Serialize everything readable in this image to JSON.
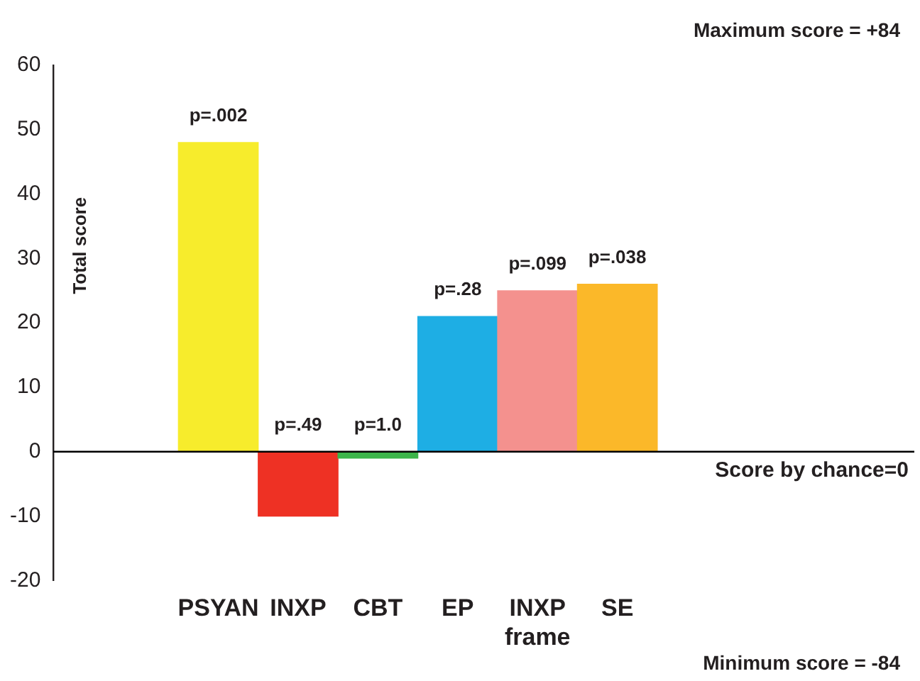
{
  "chart_data": {
    "type": "bar",
    "ylabel": "Total score",
    "categories": [
      "PSYAN",
      "INXP",
      "CBT",
      "EP",
      "INXP\nframe",
      "SE"
    ],
    "values": [
      48,
      -10,
      -1,
      21,
      25,
      26
    ],
    "colors": [
      "#f7ec2c",
      "#ee3124",
      "#3cb54a",
      "#1eaee4",
      "#f4918e",
      "#fbb829"
    ],
    "ylim": [
      -20,
      60
    ],
    "yticks": [
      -20,
      -10,
      0,
      10,
      20,
      30,
      40,
      50,
      60
    ],
    "grid": false,
    "legend": false,
    "ref_lines": [
      {
        "axis": "y",
        "value": 0,
        "label": "Score by chance=0",
        "color": "#000000"
      }
    ],
    "annotations": [
      "Maximum score = +84",
      "Minimum score = -84",
      {
        "text": "p=.002",
        "x": "PSYAN",
        "y": 48
      },
      {
        "text": "p=.49",
        "x": "INXP",
        "y": 0
      },
      {
        "text": "p=1.0",
        "x": "CBT",
        "y": 0
      },
      {
        "text": "p=.28",
        "x": "EP",
        "y": 21
      },
      {
        "text": "p=.099",
        "x": "INXP\nframe",
        "y": 25
      },
      {
        "text": "p=.038",
        "x": "SE",
        "y": 26
      }
    ]
  }
}
